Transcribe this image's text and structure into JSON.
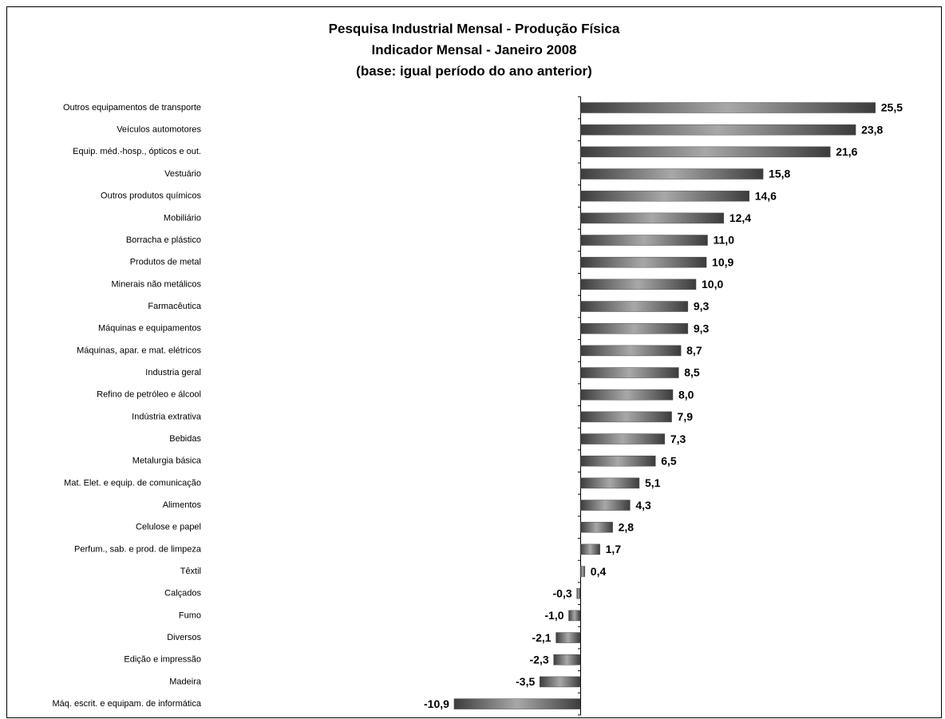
{
  "chart_data": {
    "type": "hbar",
    "title": [
      "Pesquisa Industrial Mensal - Produção Física",
      "Indicador Mensal - Janeiro 2008",
      "(base: igual período do ano anterior)"
    ],
    "categories": [
      "Outros equipamentos de transporte",
      "Veículos automotores",
      "Equip. méd.-hosp., ópticos e out.",
      "Vestuário ",
      "Outros produtos químicos",
      "Mobiliário",
      "Borracha e plástico",
      "Produtos de metal ",
      "Minerais não metálicos",
      "Farmacêutica",
      "Máquinas e equipamentos",
      "Máquinas, apar. e mat. elétricos",
      "Industria geral",
      "Refino de petróleo e álcool",
      "Indústria extrativa",
      "Bebidas",
      "Metalurgia básica",
      "Mat. Elet. e equip. de comunicação",
      "Alimentos",
      "Celulose e papel ",
      "Perfum., sab. e prod. de limpeza",
      "Têxtil",
      "Calçados ",
      "Fumo",
      "Diversos",
      "Edição e impressão",
      "Madeira",
      "Máq. escrit. e equipam. de informática"
    ],
    "values": [
      25.5,
      23.8,
      21.6,
      15.8,
      14.6,
      12.4,
      11.0,
      10.9,
      10.0,
      9.3,
      9.3,
      8.7,
      8.5,
      8.0,
      7.9,
      7.3,
      6.5,
      5.1,
      4.3,
      2.8,
      1.7,
      0.4,
      -0.3,
      -1.0,
      -2.1,
      -2.3,
      -3.5,
      -10.9
    ],
    "value_labels": [
      "25,5",
      "23,8",
      "21,6",
      "15,8",
      "14,6",
      "12,4",
      "11,0",
      "10,9",
      "10,0",
      "9,3",
      "9,3",
      "8,7",
      "8,5",
      "8,0",
      "7,9",
      "7,3",
      "6,5",
      "5,1",
      "4,3",
      "2,8",
      "1,7",
      "0,4",
      "-0,3",
      "-1,0",
      "-2,1",
      "-2,3",
      "-3,5",
      "-10,9"
    ],
    "xlim": [
      -12,
      28
    ],
    "color": "#505050"
  }
}
